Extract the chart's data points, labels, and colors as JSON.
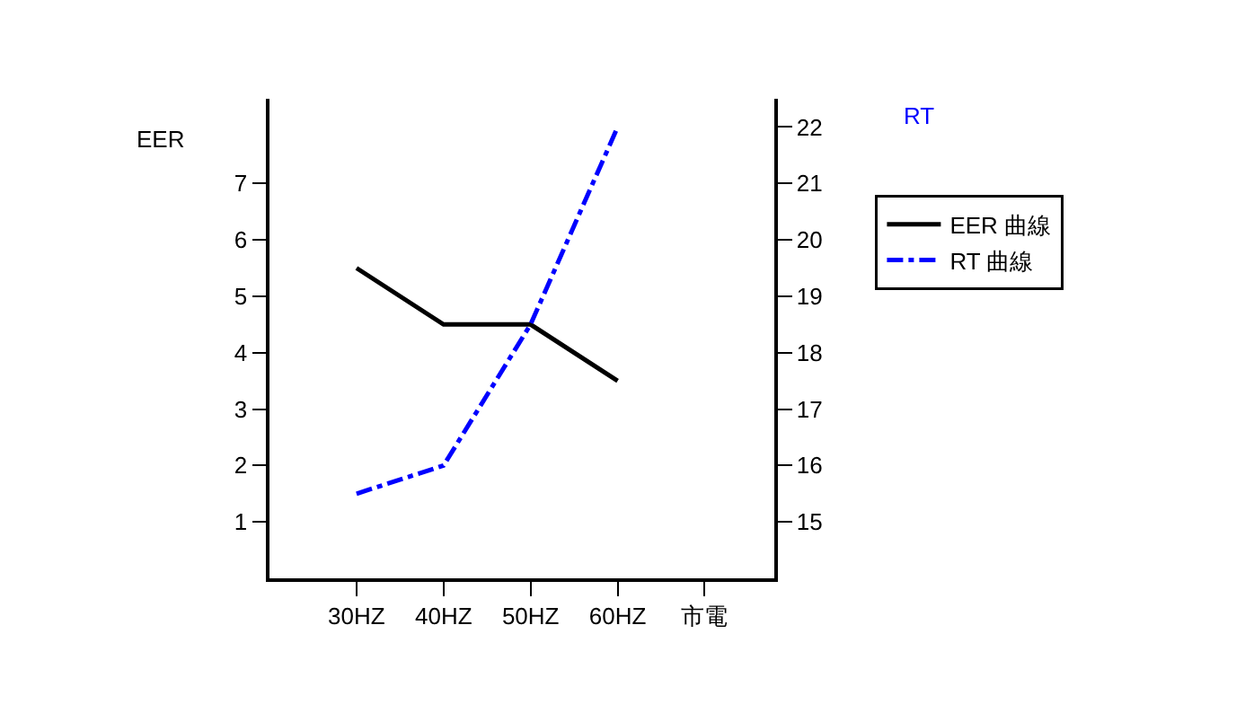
{
  "chart_data": {
    "type": "line",
    "ylabel": "EER",
    "y2label": "RT",
    "categories": [
      "30HZ",
      "40HZ",
      "50HZ",
      "60HZ",
      "市電"
    ],
    "series": [
      {
        "name": "EER 曲線",
        "color": "#000000",
        "line_style": "solid",
        "values": [
          5.5,
          4.5,
          4.5,
          3.5,
          null
        ]
      },
      {
        "name": "RT 曲線",
        "color": "#0000ff",
        "line_style": "dashdot",
        "axis": "y2",
        "values": [
          15.5,
          16,
          18.5,
          22,
          null
        ]
      }
    ],
    "ylim": [
      0,
      8.5
    ],
    "yticks": [
      1,
      2,
      3,
      4,
      5,
      6,
      7
    ],
    "y2lim": [
      14,
      22.5
    ],
    "y2ticks": [
      15,
      16,
      17,
      18,
      19,
      20,
      21,
      22
    ],
    "legend": "right",
    "marker": "none"
  }
}
